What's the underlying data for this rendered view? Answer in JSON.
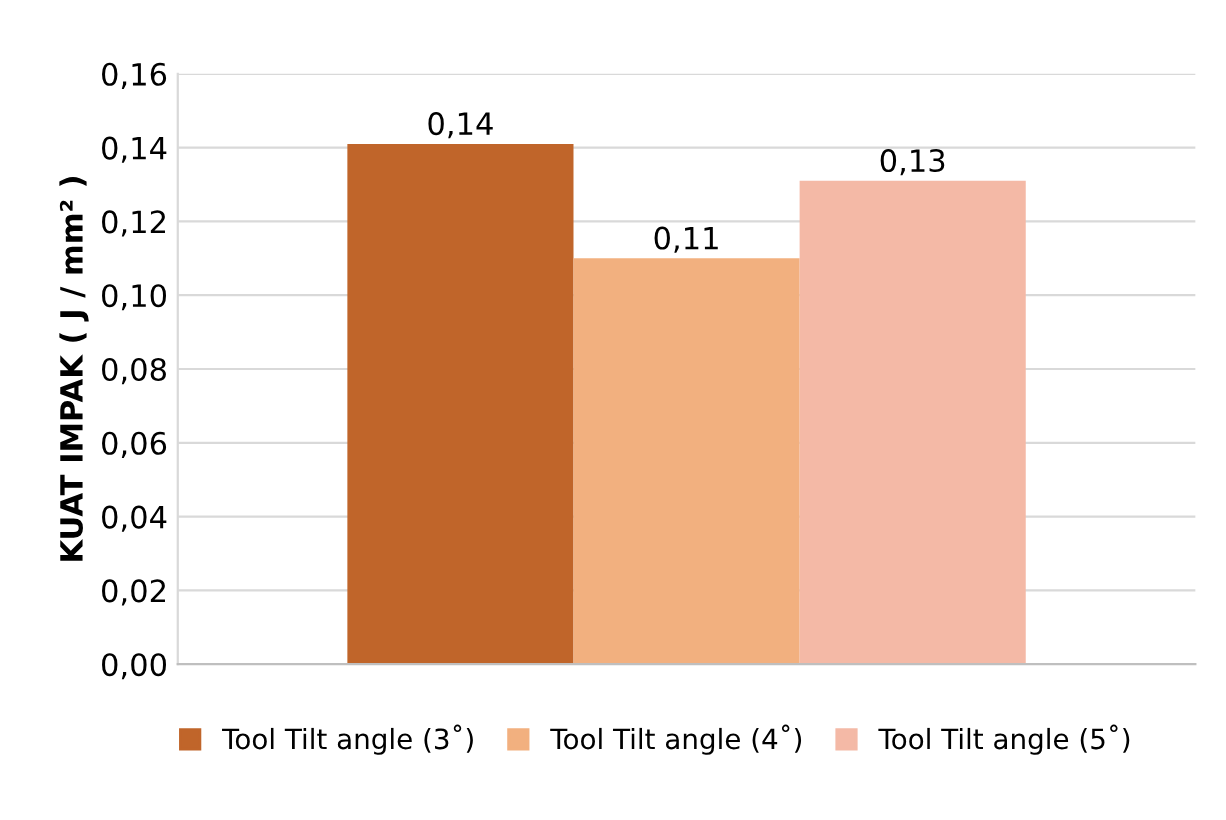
{
  "chart_data": {
    "type": "bar",
    "ylabel": "KUAT IMPAK ( J / mm² )",
    "categories": [
      null
    ],
    "series": [
      {
        "name": "Tool Tilt angle (3˚)",
        "color": "#c0652a",
        "values": [
          0.141
        ],
        "value_labels": [
          "0,14"
        ]
      },
      {
        "name": "Tool Tilt angle (4˚)",
        "color": "#f2b07f",
        "values": [
          0.11
        ],
        "value_labels": [
          "0,11"
        ]
      },
      {
        "name": "Tool Tilt angle (5˚)",
        "color": "#f4b9a6",
        "values": [
          0.131
        ],
        "value_labels": [
          "0,13"
        ]
      }
    ],
    "ylim": [
      0,
      0.16
    ],
    "yticks": [
      {
        "value": 0,
        "label": "0,00"
      },
      {
        "value": 0.02,
        "label": "0,02"
      },
      {
        "value": 0.04,
        "label": "0,04"
      },
      {
        "value": 0.06,
        "label": "0,06"
      },
      {
        "value": 0.08,
        "label": "0,08"
      },
      {
        "value": 0.1,
        "label": "0,10"
      },
      {
        "value": 0.12,
        "label": "0,12"
      },
      {
        "value": 0.14,
        "label": "0,14"
      },
      {
        "value": 0.16,
        "label": "0,16"
      }
    ],
    "grid": "y",
    "legend": "bottom"
  }
}
